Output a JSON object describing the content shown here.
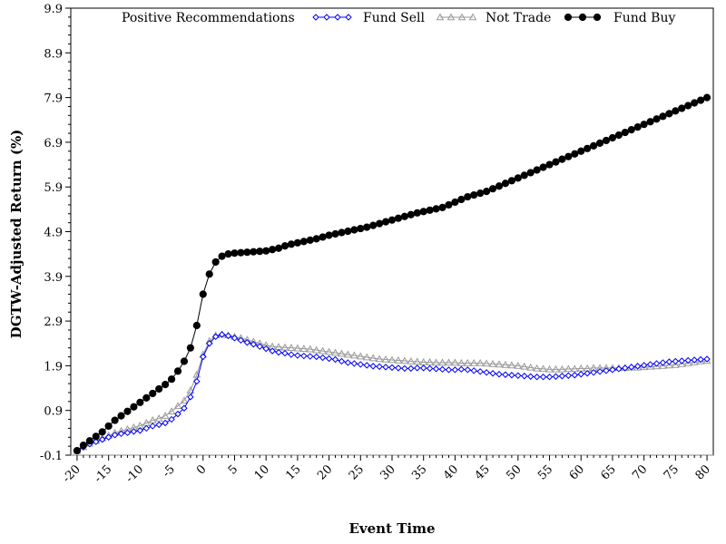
{
  "chart_data": {
    "type": "line",
    "title": "",
    "xlabel": "Event Time",
    "ylabel": "DGTW-Adjusted Return (%)",
    "legend_title": "Positive Recommendations",
    "legend_position": "top",
    "grid": false,
    "xlim": [
      -21,
      81
    ],
    "ylim": [
      -0.1,
      9.9
    ],
    "x_ticks": [
      -20,
      -15,
      -10,
      -5,
      0,
      5,
      10,
      15,
      20,
      25,
      30,
      35,
      40,
      45,
      50,
      55,
      60,
      65,
      70,
      75,
      80
    ],
    "x_tick_labels": [
      "-20",
      "-15",
      "-10",
      "-5",
      "0",
      "5",
      "10",
      "15",
      "20",
      "25",
      "30",
      "35",
      "40",
      "45",
      "50",
      "55",
      "60",
      "65",
      "70",
      "75",
      "80"
    ],
    "y_ticks": [
      -0.1,
      0.9,
      1.9,
      2.9,
      3.9,
      4.9,
      5.9,
      6.9,
      7.9,
      8.9,
      9.9
    ],
    "y_tick_labels": [
      "-0.1",
      "0.9",
      "1.9",
      "2.9",
      "3.9",
      "4.9",
      "5.9",
      "6.9",
      "7.9",
      "8.9",
      "9.9"
    ],
    "x": [
      -20,
      -19,
      -18,
      -17,
      -16,
      -15,
      -14,
      -13,
      -12,
      -11,
      -10,
      -9,
      -8,
      -7,
      -6,
      -5,
      -4,
      -3,
      -2,
      -1,
      0,
      1,
      2,
      3,
      4,
      5,
      6,
      7,
      8,
      9,
      10,
      11,
      12,
      13,
      14,
      15,
      16,
      17,
      18,
      19,
      20,
      21,
      22,
      23,
      24,
      25,
      26,
      27,
      28,
      29,
      30,
      31,
      32,
      33,
      34,
      35,
      36,
      37,
      38,
      39,
      40,
      41,
      42,
      43,
      44,
      45,
      46,
      47,
      48,
      49,
      50,
      51,
      52,
      53,
      54,
      55,
      56,
      57,
      58,
      59,
      60,
      61,
      62,
      63,
      64,
      65,
      66,
      67,
      68,
      69,
      70,
      71,
      72,
      73,
      74,
      75,
      76,
      77,
      78,
      79,
      80
    ],
    "series": [
      {
        "name": "Fund Sell",
        "color": "#0000ff",
        "marker": "diamond",
        "values": [
          0.0,
          0.08,
          0.15,
          0.2,
          0.25,
          0.3,
          0.35,
          0.38,
          0.4,
          0.43,
          0.45,
          0.5,
          0.55,
          0.58,
          0.62,
          0.7,
          0.82,
          0.95,
          1.2,
          1.55,
          2.1,
          2.4,
          2.55,
          2.6,
          2.57,
          2.52,
          2.47,
          2.42,
          2.38,
          2.33,
          2.28,
          2.23,
          2.2,
          2.18,
          2.15,
          2.13,
          2.12,
          2.11,
          2.1,
          2.08,
          2.06,
          2.04,
          2.0,
          1.97,
          1.95,
          1.93,
          1.91,
          1.89,
          1.88,
          1.87,
          1.86,
          1.85,
          1.84,
          1.84,
          1.85,
          1.85,
          1.84,
          1.83,
          1.82,
          1.81,
          1.81,
          1.82,
          1.81,
          1.79,
          1.77,
          1.75,
          1.73,
          1.71,
          1.7,
          1.69,
          1.68,
          1.67,
          1.66,
          1.65,
          1.65,
          1.65,
          1.66,
          1.67,
          1.68,
          1.69,
          1.71,
          1.73,
          1.75,
          1.77,
          1.79,
          1.81,
          1.83,
          1.85,
          1.87,
          1.89,
          1.91,
          1.93,
          1.95,
          1.97,
          1.99,
          2.0,
          2.01,
          2.02,
          2.03,
          2.04,
          2.05
        ]
      },
      {
        "name": "Not Trade",
        "color": "#999999",
        "marker": "triangle",
        "values": [
          0.0,
          0.08,
          0.16,
          0.22,
          0.28,
          0.34,
          0.4,
          0.44,
          0.48,
          0.52,
          0.56,
          0.62,
          0.68,
          0.72,
          0.78,
          0.88,
          1.0,
          1.12,
          1.35,
          1.7,
          2.15,
          2.45,
          2.58,
          2.6,
          2.58,
          2.55,
          2.52,
          2.48,
          2.44,
          2.4,
          2.36,
          2.33,
          2.32,
          2.31,
          2.3,
          2.29,
          2.28,
          2.27,
          2.25,
          2.23,
          2.21,
          2.19,
          2.17,
          2.15,
          2.13,
          2.11,
          2.09,
          2.07,
          2.05,
          2.04,
          2.03,
          2.02,
          2.01,
          2.0,
          1.99,
          1.98,
          1.98,
          1.97,
          1.97,
          1.97,
          1.97,
          1.96,
          1.96,
          1.96,
          1.96,
          1.95,
          1.94,
          1.93,
          1.92,
          1.91,
          1.9,
          1.88,
          1.86,
          1.84,
          1.83,
          1.82,
          1.82,
          1.82,
          1.83,
          1.83,
          1.84,
          1.84,
          1.85,
          1.85,
          1.85,
          1.85,
          1.85,
          1.85,
          1.86,
          1.86,
          1.87,
          1.88,
          1.89,
          1.9,
          1.91,
          1.92,
          1.94,
          1.96,
          1.98,
          2.0,
          2.01
        ]
      },
      {
        "name": "Fund Buy",
        "color": "#000000",
        "marker": "circle",
        "values": [
          0.0,
          0.12,
          0.22,
          0.32,
          0.42,
          0.55,
          0.68,
          0.78,
          0.88,
          0.98,
          1.08,
          1.18,
          1.28,
          1.38,
          1.48,
          1.6,
          1.78,
          2.0,
          2.3,
          2.8,
          3.5,
          3.95,
          4.22,
          4.35,
          4.4,
          4.42,
          4.43,
          4.44,
          4.45,
          4.46,
          4.47,
          4.5,
          4.53,
          4.58,
          4.62,
          4.65,
          4.68,
          4.71,
          4.74,
          4.78,
          4.82,
          4.85,
          4.88,
          4.91,
          4.94,
          4.97,
          5.0,
          5.04,
          5.08,
          5.12,
          5.16,
          5.2,
          5.24,
          5.28,
          5.32,
          5.35,
          5.38,
          5.41,
          5.44,
          5.5,
          5.56,
          5.62,
          5.68,
          5.72,
          5.76,
          5.8,
          5.86,
          5.92,
          5.98,
          6.04,
          6.1,
          6.16,
          6.22,
          6.28,
          6.34,
          6.4,
          6.46,
          6.52,
          6.58,
          6.64,
          6.7,
          6.76,
          6.82,
          6.88,
          6.94,
          7.0,
          7.06,
          7.12,
          7.18,
          7.24,
          7.3,
          7.36,
          7.42,
          7.48,
          7.54,
          7.6,
          7.66,
          7.72,
          7.78,
          7.84,
          7.9
        ]
      }
    ]
  }
}
